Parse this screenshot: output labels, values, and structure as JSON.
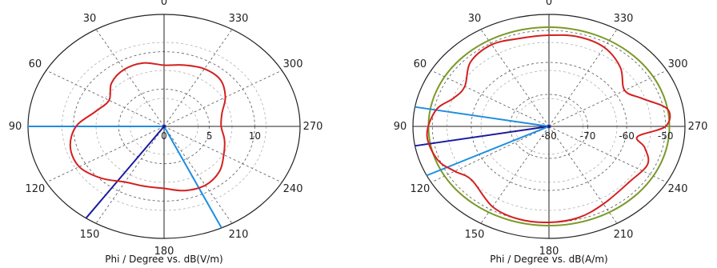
{
  "chart_data": [
    {
      "type": "polar",
      "xlabel": "Phi / Degree vs. dB(V/m)",
      "angle_ticks": [
        "0",
        "30",
        "60",
        "90",
        "120",
        "150",
        "180",
        "210",
        "240",
        "270",
        "300",
        "330"
      ],
      "angle_direction": "counterclockwise, 0 at top",
      "radial_ticks": [
        "0",
        "5",
        "10"
      ],
      "radial_range": [
        0,
        15
      ],
      "grid": true,
      "colors": {
        "pattern": "#d42020",
        "axes": "#222222",
        "grid": "#555555",
        "marker_light": "#1e8ee0",
        "marker_dark": "#1a1aa0"
      },
      "series": [
        {
          "theta": [
            0,
            15,
            30,
            45,
            60,
            75,
            90,
            105,
            120,
            135,
            150,
            165,
            180,
            195,
            210,
            225,
            240,
            255,
            270,
            285,
            300,
            315,
            330,
            345
          ],
          "r": [
            8.2,
            8.8,
            8.8,
            8.2,
            7.0,
            7.8,
            9.7,
            10.7,
            10.8,
            9.8,
            8.6,
            8.3,
            8.3,
            8.9,
            9.1,
            8.6,
            7.6,
            6.9,
            6.3,
            6.6,
            7.8,
            8.8,
            8.9,
            8.5
          ]
        }
      ],
      "markers": [
        {
          "angle": 90,
          "color": "light"
        },
        {
          "angle": 145,
          "color": "dark"
        },
        {
          "angle": 205,
          "color": "light"
        }
      ]
    },
    {
      "type": "polar",
      "xlabel": "Phi / Degree vs. dB(A/m)",
      "angle_ticks": [
        "0",
        "30",
        "60",
        "90",
        "120",
        "150",
        "180",
        "210",
        "240",
        "270",
        "300",
        "330"
      ],
      "angle_direction": "counterclockwise, 0 at top",
      "radial_ticks": [
        "-80",
        "-70",
        "-60",
        "-50"
      ],
      "radial_range": [
        -80,
        -45
      ],
      "grid": true,
      "colors": {
        "pattern": "#d42020",
        "reference": "#7a9a28",
        "axes": "#222222",
        "grid": "#555555",
        "marker_light": "#1e8ee0",
        "marker_dark": "#1a1aa0"
      },
      "reference_circle": -49,
      "series": [
        {
          "theta": [
            0,
            15,
            30,
            45,
            60,
            70,
            80,
            95,
            110,
            120,
            130,
            150,
            165,
            180,
            195,
            210,
            230,
            245,
            255,
            262,
            270,
            280,
            290,
            300,
            315,
            330,
            345
          ],
          "r": [
            -51.5,
            -51.5,
            -50.5,
            -51.5,
            -55,
            -54,
            -50.5,
            -48.5,
            -49.5,
            -52,
            -54,
            -51,
            -50,
            -50,
            -50.5,
            -52,
            -53,
            -52,
            -54.5,
            -57,
            -50,
            -49,
            -54.5,
            -57.5,
            -54,
            -51.5,
            -51
          ]
        }
      ],
      "markers": [
        {
          "angle": 80,
          "color": "light"
        },
        {
          "angle": 100,
          "color": "dark"
        },
        {
          "angle": 116,
          "color": "light"
        }
      ]
    }
  ]
}
